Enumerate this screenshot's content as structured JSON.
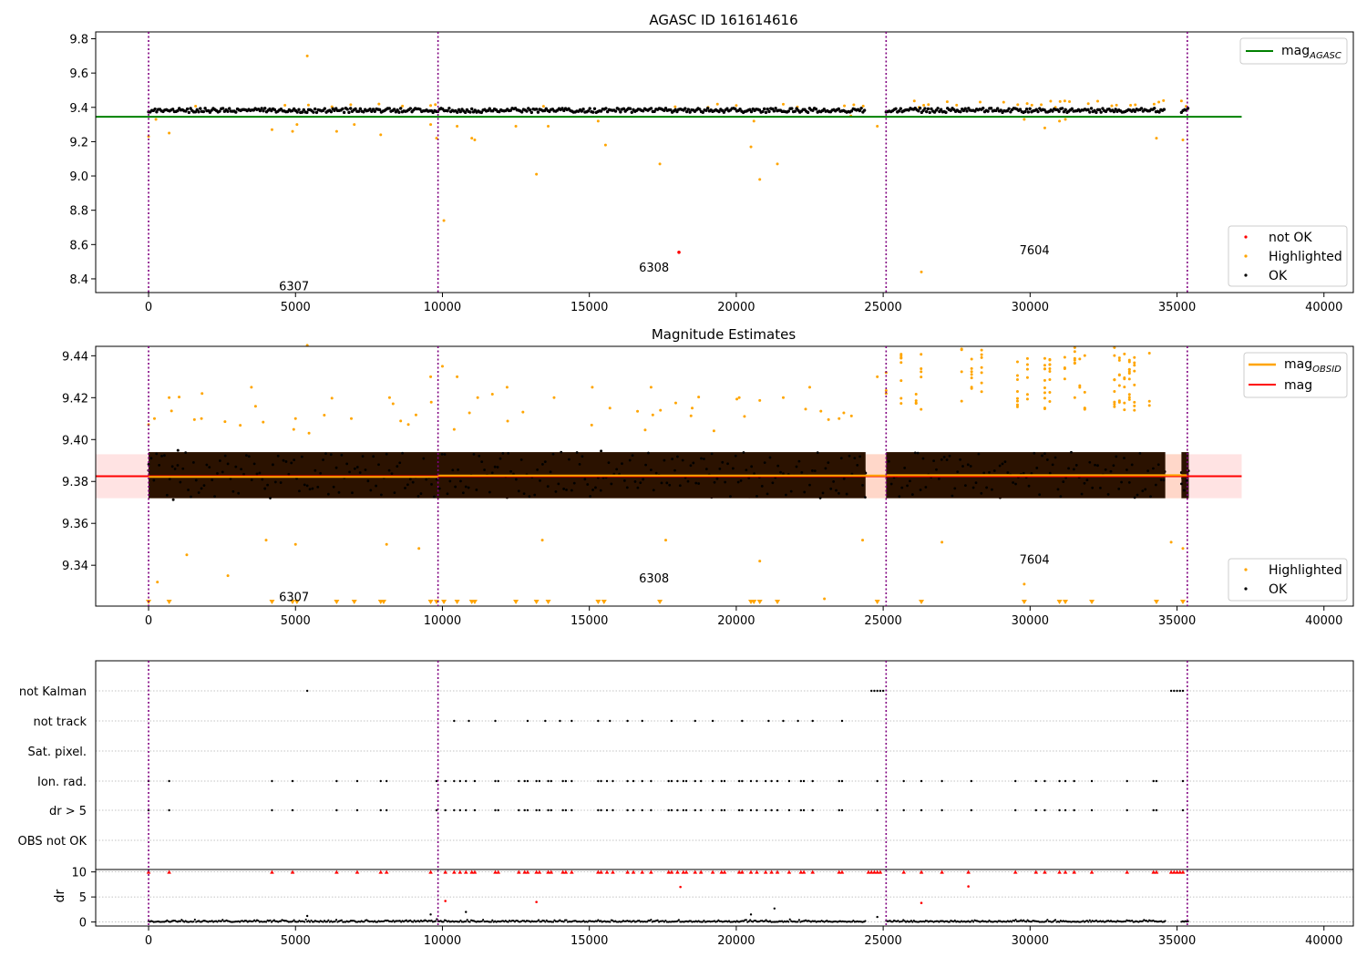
{
  "colors": {
    "ok": "#000000",
    "highlighted": "#ffa500",
    "not_ok": "#ff0000",
    "agasc_line": "#008000",
    "obsid_line": "#ffa500",
    "mag_line": "#ff0000",
    "obs_divider": "#800080",
    "band_mag": "#ffc0c0",
    "band_obsid": "#ffd8a8"
  },
  "chart_data": [
    {
      "type": "scatter",
      "title": "AGASC ID 161614616",
      "xlim": [
        -1800,
        41000
      ],
      "ylim": [
        8.32,
        9.84
      ],
      "x_ticks": [
        0,
        5000,
        10000,
        15000,
        20000,
        25000,
        30000,
        35000,
        40000
      ],
      "y_ticks": [
        8.4,
        8.6,
        8.8,
        9.0,
        9.2,
        9.4,
        9.6,
        9.8
      ],
      "obs_boundaries": [
        0,
        9850,
        25100,
        35350
      ],
      "observations": [
        {
          "label": "6307",
          "x": 4950,
          "y": 8.36
        },
        {
          "label": "6308",
          "x": 17200,
          "y": 8.47
        },
        {
          "label": "7604",
          "x": 30150,
          "y": 8.57
        }
      ],
      "reference_line": {
        "name": "mag_AGASC",
        "y": 9.345,
        "x": [
          -1800,
          37200
        ]
      },
      "segments": [
        [
          0,
          24400
        ],
        [
          25100,
          34600
        ],
        [
          35150,
          35400
        ]
      ],
      "ok_band": [
        9.37,
        9.395
      ],
      "highlight_band": [
        9.4,
        9.44
      ],
      "highlight_outliers": [
        [
          0,
          9.23
        ],
        [
          250,
          9.33
        ],
        [
          700,
          9.25
        ],
        [
          4200,
          9.27
        ],
        [
          4900,
          9.26
        ],
        [
          5050,
          9.3
        ],
        [
          5400,
          9.7
        ],
        [
          6400,
          9.26
        ],
        [
          7000,
          9.3
        ],
        [
          7900,
          9.24
        ],
        [
          9600,
          9.3
        ],
        [
          9800,
          9.22
        ],
        [
          10050,
          8.74
        ],
        [
          10500,
          9.29
        ],
        [
          11000,
          9.22
        ],
        [
          11100,
          9.21
        ],
        [
          12500,
          9.29
        ],
        [
          13200,
          9.01
        ],
        [
          13600,
          9.29
        ],
        [
          15300,
          9.32
        ],
        [
          15550,
          9.18
        ],
        [
          17400,
          9.07
        ],
        [
          20500,
          9.17
        ],
        [
          20600,
          9.32
        ],
        [
          20800,
          8.98
        ],
        [
          21400,
          9.07
        ],
        [
          23900,
          9.35
        ],
        [
          24800,
          9.29
        ],
        [
          26300,
          8.44
        ],
        [
          29800,
          9.33
        ],
        [
          30500,
          9.28
        ],
        [
          31000,
          9.32
        ],
        [
          31200,
          9.33
        ],
        [
          34300,
          9.22
        ],
        [
          35200,
          9.21
        ]
      ],
      "not_ok_points": [
        [
          18050,
          8.555
        ]
      ],
      "legend_upper": [
        "mag_AGASC"
      ],
      "legend_lower": [
        "not OK",
        "Highlighted",
        "OK"
      ],
      "legend_placement": "top-right, bottom-right"
    },
    {
      "type": "scatter",
      "title": "Magnitude Estimates",
      "xlim": [
        -1800,
        41000
      ],
      "ylim": [
        9.3205,
        9.4445
      ],
      "x_ticks": [
        0,
        5000,
        10000,
        15000,
        20000,
        25000,
        30000,
        35000,
        40000
      ],
      "y_ticks": [
        9.34,
        9.36,
        9.38,
        9.4,
        9.42,
        9.44
      ],
      "obs_boundaries": [
        0,
        9850,
        25100,
        35350
      ],
      "observations": [
        {
          "label": "6307",
          "x": 4950,
          "y": 9.325
        },
        {
          "label": "6308",
          "x": 17200,
          "y": 9.334
        },
        {
          "label": "7604",
          "x": 30150,
          "y": 9.343
        }
      ],
      "mag_line": {
        "name": "mag",
        "y": 9.3825,
        "x": [
          -1800,
          37200
        ]
      },
      "obsid_lines": [
        {
          "x": [
            0,
            9850
          ],
          "y": 9.3822
        },
        {
          "x": [
            9850,
            25100
          ],
          "y": 9.3828
        },
        {
          "x": [
            25100,
            35350
          ],
          "y": 9.383
        }
      ],
      "mag_band": [
        9.372,
        9.393
      ],
      "segments": [
        [
          0,
          24400
        ],
        [
          25100,
          34600
        ],
        [
          35150,
          35400
        ]
      ],
      "core_band": [
        9.372,
        9.394
      ],
      "ok_spread": [
        9.352,
        9.413
      ],
      "highlight_upper_points": [
        [
          200,
          9.41
        ],
        [
          700,
          9.42
        ],
        [
          1800,
          9.41
        ],
        [
          3500,
          9.425
        ],
        [
          5000,
          9.41
        ],
        [
          5400,
          9.445
        ],
        [
          6900,
          9.41
        ],
        [
          8200,
          9.42
        ],
        [
          9600,
          9.43
        ],
        [
          10000,
          9.435
        ],
        [
          10500,
          9.43
        ],
        [
          11200,
          9.42
        ],
        [
          12200,
          9.425
        ],
        [
          13800,
          9.42
        ],
        [
          15100,
          9.425
        ],
        [
          15700,
          9.415
        ],
        [
          17100,
          9.425
        ],
        [
          18500,
          9.415
        ],
        [
          20100,
          9.42
        ],
        [
          21600,
          9.42
        ],
        [
          22500,
          9.425
        ],
        [
          23500,
          9.41
        ],
        [
          24800,
          9.43
        ]
      ],
      "highlight_lower_points": [
        [
          300,
          9.332
        ],
        [
          1300,
          9.345
        ],
        [
          2700,
          9.335
        ],
        [
          4000,
          9.352
        ],
        [
          5000,
          9.35
        ],
        [
          8100,
          9.35
        ],
        [
          9200,
          9.348
        ],
        [
          13400,
          9.352
        ],
        [
          17600,
          9.352
        ],
        [
          20800,
          9.342
        ],
        [
          23000,
          9.324
        ],
        [
          24300,
          9.352
        ],
        [
          27000,
          9.351
        ],
        [
          29800,
          9.331
        ],
        [
          34800,
          9.351
        ],
        [
          35200,
          9.348
        ]
      ],
      "saturated_segments_x": [
        [
          25100,
          26400
        ],
        [
          27500,
          28600
        ],
        [
          29400,
          30100
        ],
        [
          30500,
          32000
        ],
        [
          32700,
          34600
        ]
      ],
      "triangle_marks_x": [
        0,
        700,
        4200,
        4900,
        5050,
        6400,
        7000,
        7900,
        8000,
        9600,
        9800,
        10050,
        10500,
        11000,
        11100,
        12500,
        13200,
        13600,
        15300,
        15500,
        17400,
        20500,
        20600,
        20800,
        21400,
        24800,
        26300,
        29800,
        31000,
        31200,
        32100,
        34300,
        35200
      ],
      "legend_upper": [
        "mag_OBSID",
        "mag"
      ],
      "legend_lower": [
        "Highlighted",
        "OK"
      ],
      "legend_placement": "top-right, bottom-right"
    },
    {
      "type": "scatter",
      "xlim": [
        -1800,
        41000
      ],
      "x_ticks": [
        0,
        5000,
        10000,
        15000,
        20000,
        25000,
        30000,
        35000,
        40000
      ],
      "obs_boundaries": [
        0,
        9850,
        25100,
        35350
      ],
      "flag_labels": [
        "not Kalman",
        "not track",
        "Sat. pixel.",
        "Ion. rad.",
        "dr > 5",
        "OBS not OK"
      ],
      "flags": {
        "not Kalman": [
          5400,
          24600,
          24700,
          24800,
          24900,
          25000,
          34800,
          34900,
          35000,
          35100,
          35200
        ],
        "not track": [
          10400,
          10900,
          11800,
          12900,
          13500,
          14000,
          14400,
          15300,
          15700,
          16300,
          16800,
          17800,
          18600,
          19200,
          20200,
          21100,
          21600,
          22100,
          22600,
          23600
        ],
        "Sat. pixel.": [],
        "Ion. rad.": [
          0,
          700,
          4200,
          4900,
          6400,
          7100,
          7900,
          8100,
          9800,
          10100,
          10400,
          10600,
          10800,
          11100,
          11800,
          11900,
          12600,
          12800,
          12900,
          13200,
          13300,
          13600,
          13700,
          14100,
          14200,
          14400,
          15300,
          15400,
          15600,
          15800,
          16300,
          16500,
          16800,
          17100,
          17700,
          17800,
          18000,
          18200,
          18300,
          18600,
          18800,
          19200,
          19500,
          19600,
          20100,
          20200,
          20500,
          20700,
          21000,
          21200,
          21400,
          21800,
          22200,
          22300,
          22600,
          23500,
          23600,
          24800,
          25700,
          26300,
          27000,
          28000,
          29500,
          30200,
          30500,
          31000,
          31200,
          31500,
          32100,
          33300,
          34200,
          34300,
          35200
        ],
        "dr > 5": [
          0,
          700,
          4200,
          4900,
          6400,
          7100,
          7900,
          8100,
          9800,
          10100,
          10400,
          10600,
          10800,
          11100,
          11800,
          11900,
          12600,
          12800,
          12900,
          13200,
          13300,
          13600,
          13700,
          14100,
          14200,
          14400,
          15300,
          15400,
          15600,
          15800,
          16300,
          16500,
          16800,
          17100,
          17700,
          17800,
          18000,
          18200,
          18300,
          18600,
          18800,
          19200,
          19500,
          19600,
          20100,
          20200,
          20500,
          20700,
          21000,
          21200,
          21400,
          21800,
          22200,
          22300,
          22600,
          23500,
          23600,
          24800,
          25700,
          26300,
          27000,
          28000,
          29500,
          30200,
          30500,
          31000,
          31200,
          31500,
          32100,
          33300,
          34200,
          34300,
          35200
        ],
        "OBS not OK": []
      },
      "dr_ylabel": "dr",
      "dr_ylim": [
        -0.8,
        10.3
      ],
      "dr_ticks": [
        0,
        5,
        10
      ],
      "dr_red_clipped_x": [
        0,
        700,
        4200,
        4900,
        6400,
        7100,
        7900,
        8100,
        9600,
        10100,
        10400,
        10600,
        10800,
        11000,
        11100,
        11800,
        11900,
        12600,
        12800,
        12900,
        13200,
        13300,
        13600,
        13700,
        14100,
        14200,
        14400,
        15300,
        15400,
        15600,
        15800,
        16300,
        16500,
        16800,
        17100,
        17700,
        17800,
        18000,
        18200,
        18300,
        18600,
        18800,
        19200,
        19500,
        19600,
        20100,
        20200,
        20500,
        20700,
        21000,
        21200,
        21400,
        21800,
        22200,
        22300,
        22600,
        23500,
        23600,
        24500,
        24600,
        24700,
        24800,
        24900,
        25700,
        26300,
        27000,
        27900,
        29500,
        30200,
        30500,
        31000,
        31200,
        31500,
        32100,
        33300,
        34200,
        34300,
        34800,
        34900,
        35000,
        35100,
        35200
      ],
      "dr_red_points": [
        [
          10100,
          4.2
        ],
        [
          13200,
          4.0
        ],
        [
          18100,
          7.0
        ],
        [
          26300,
          3.8
        ],
        [
          27900,
          7.1
        ]
      ],
      "dr_black_spikes": [
        [
          5400,
          1.2
        ],
        [
          9600,
          1.5
        ],
        [
          10800,
          2.0
        ],
        [
          20500,
          1.5
        ],
        [
          21300,
          2.7
        ],
        [
          24800,
          1.0
        ]
      ]
    }
  ]
}
